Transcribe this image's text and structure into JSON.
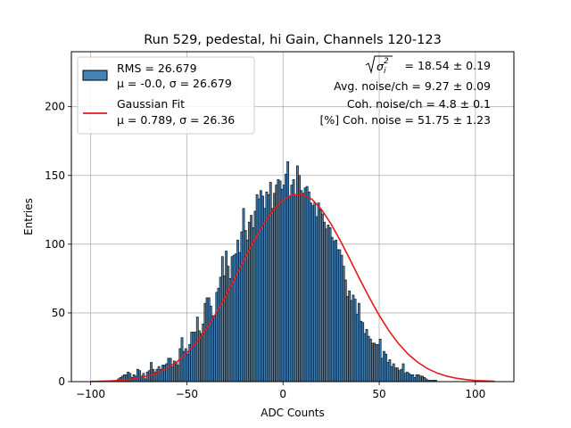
{
  "chart_data": {
    "type": "bar",
    "title": "Run 529, pedestal, hi Gain, Channels 120-123",
    "xlabel": "ADC Counts",
    "ylabel": "Entries",
    "xlim": [
      -110,
      120
    ],
    "ylim": [
      0,
      240
    ],
    "xticks": [
      -100,
      -50,
      0,
      50,
      100
    ],
    "yticks": [
      0,
      50,
      100,
      150,
      200
    ],
    "xtick_labels": [
      "−100",
      "−50",
      "0",
      "50",
      "100"
    ],
    "ytick_labels": [
      "0",
      "50",
      "100",
      "150",
      "200"
    ],
    "grid": true,
    "legend_position": "top-left",
    "legend": [
      {
        "swatch": "bar",
        "color": "#4682b4",
        "line1": "RMS = 26.679",
        "line2": "μ = -0.0, σ = 26.679"
      },
      {
        "swatch": "line",
        "color": "#e41a1c",
        "line1": "Gaussian Fit",
        "line2": "μ = 0.789, σ = 26.36"
      }
    ],
    "annotations": {
      "sigma_sq_value": "= 18.54 ± 0.19",
      "avg_noise": "Avg. noise/ch = 9.27 ± 0.09",
      "coh_noise": "Coh. noise/ch = 4.8 ± 0.1",
      "pct_coh_noise": "[%] Coh. noise = 51.75 ± 1.23"
    },
    "series": [
      {
        "name": "RMS = 26.679",
        "kind": "histogram",
        "color": "#4682b4",
        "edgecolor": "#000000",
        "bins": {
          "start": -100,
          "end": 110,
          "width": 1
        },
        "values": [
          0,
          0,
          0,
          0,
          0,
          0,
          0,
          0,
          0,
          0,
          0,
          0,
          0,
          1,
          2,
          3,
          4,
          5,
          5,
          7,
          6,
          3,
          5,
          4,
          9,
          8,
          4,
          6,
          2,
          7,
          8,
          14,
          9,
          7,
          9,
          11,
          9,
          12,
          12,
          13,
          17,
          17,
          11,
          15,
          14,
          12,
          24,
          32,
          22,
          24,
          20,
          27,
          36,
          36,
          36,
          47,
          37,
          35,
          42,
          57,
          61,
          61,
          55,
          48,
          48,
          65,
          68,
          76,
          91,
          77,
          95,
          84,
          75,
          91,
          92,
          93,
          103,
          94,
          109,
          126,
          110,
          103,
          116,
          121,
          112,
          124,
          136,
          133,
          139,
          135,
          126,
          138,
          136,
          145,
          126,
          137,
          143,
          147,
          146,
          140,
          143,
          151,
          160,
          135,
          143,
          147,
          135,
          157,
          150,
          139,
          137,
          141,
          142,
          138,
          130,
          128,
          130,
          120,
          130,
          125,
          122,
          116,
          111,
          114,
          112,
          105,
          102,
          103,
          96,
          96,
          92,
          84,
          74,
          62,
          66,
          59,
          63,
          60,
          49,
          57,
          44,
          43,
          35,
          38,
          33,
          31,
          28,
          28,
          27,
          27,
          31,
          17,
          22,
          20,
          14,
          16,
          11,
          13,
          10,
          10,
          8,
          9,
          13,
          6,
          7,
          6,
          5,
          5,
          3,
          5,
          5,
          4,
          4,
          3,
          2,
          1,
          1,
          1,
          1,
          1,
          0,
          0,
          0,
          0,
          0,
          0,
          0,
          0,
          0,
          0,
          0,
          0,
          0,
          0,
          0,
          0,
          0,
          0,
          0,
          0,
          0,
          0,
          0,
          0,
          0,
          0,
          0,
          0,
          0,
          0,
          0,
          0,
          0,
          0,
          0,
          0
        ]
      },
      {
        "name": "Gaussian Fit",
        "kind": "line",
        "color": "#e41a1c",
        "x": [
          -100,
          -95,
          -90,
          -85,
          -80,
          -75,
          -70,
          -65,
          -60,
          -55,
          -50,
          -45,
          -40,
          -35,
          -30,
          -25,
          -20,
          -15,
          -10,
          -5,
          0,
          5,
          10,
          15,
          20,
          25,
          30,
          35,
          40,
          45,
          50,
          55,
          60,
          65,
          70,
          75,
          80,
          85,
          90,
          95,
          100,
          105,
          110
        ],
        "y": [
          0.1,
          0.3,
          0.5,
          0.9,
          1.6,
          2.6,
          4.2,
          6.6,
          10.0,
          14.6,
          20.7,
          28.5,
          38.0,
          49.2,
          61.8,
          75.3,
          89.2,
          102.7,
          114.8,
          124.9,
          132.1,
          136.2,
          136.3,
          132.7,
          125.2,
          114.6,
          102.0,
          88.3,
          74.2,
          60.7,
          48.2,
          37.1,
          27.7,
          20.0,
          14.1,
          9.5,
          6.3,
          4.0,
          2.5,
          1.5,
          0.8,
          0.5,
          0.2
        ]
      }
    ]
  }
}
